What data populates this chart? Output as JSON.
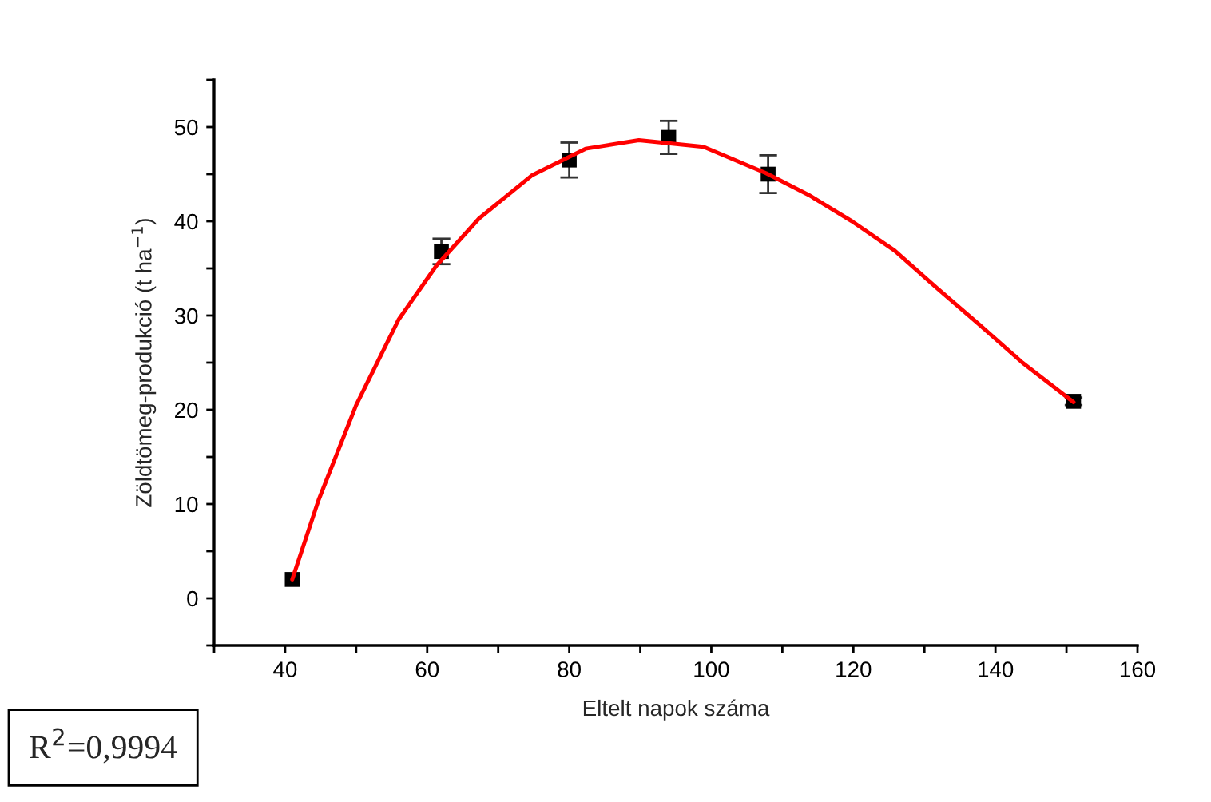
{
  "chart_data": {
    "type": "scatter",
    "xlabel": "Eltelt napok száma",
    "ylabel": "Zöldtömeg-produkció (t ha$^{−1}$)",
    "xlim": [
      30,
      160
    ],
    "ylim": [
      -5,
      55
    ],
    "xticks": [
      {
        "value": 30,
        "label": null
      },
      40,
      {
        "value": 50,
        "label": null
      },
      60,
      {
        "value": 70,
        "label": null
      },
      80,
      {
        "value": 90,
        "label": null
      },
      100,
      {
        "value": 110,
        "label": null
      },
      120,
      {
        "value": 130,
        "label": null
      },
      140,
      {
        "value": 150,
        "label": null
      },
      160
    ],
    "yticks": [
      {
        "value": -5,
        "label": null
      },
      0,
      {
        "value": 5,
        "label": null
      },
      10,
      {
        "value": 15,
        "label": null
      },
      20,
      {
        "value": 25,
        "label": null
      },
      30,
      {
        "value": 35,
        "label": null
      },
      40,
      {
        "value": 45,
        "label": null
      },
      50,
      {
        "value": 55,
        "label": null
      }
    ],
    "grid": false,
    "legend": false,
    "series": [
      {
        "color": "#000000",
        "marker": "square",
        "x": [
          41,
          62,
          80,
          94,
          108,
          151
        ],
        "values": [
          2.0,
          36.8,
          46.5,
          48.9,
          45.0,
          20.9
        ],
        "errors": [
          null,
          1.35,
          1.85,
          1.75,
          2.0,
          0.4
        ]
      },
      {
        "type": "line",
        "color": "#ff0000",
        "marker": "none",
        "line_style": "solid",
        "x": [
          41,
          44.7,
          50,
          56,
          61.3,
          67.3,
          74.8,
          82.3,
          89.8,
          98.9,
          107.7,
          113.7,
          119.8,
          125.8,
          131.8,
          137.8,
          143.8,
          151
        ],
        "values": [
          2.0,
          10.4,
          20.5,
          29.6,
          35.3,
          40.3,
          44.9,
          47.7,
          48.6,
          47.9,
          45.1,
          42.8,
          40.0,
          36.9,
          32.9,
          29.0,
          25.0,
          20.8
        ]
      }
    ],
    "annotations": [
      "R$^{2}$=0,9994"
    ]
  }
}
